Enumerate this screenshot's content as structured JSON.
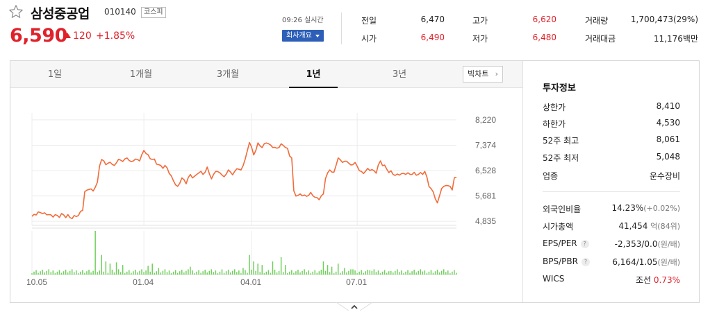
{
  "stock": {
    "name": "삼성중공업",
    "code": "010140",
    "market": "코스피",
    "price": "6,590",
    "change": "120",
    "change_pct": "+1.85%",
    "realtime": "09:26 실시간",
    "overview_btn": "회사개요"
  },
  "stats": {
    "prev_close_label": "전일",
    "prev_close": "6,470",
    "high_label": "고가",
    "high": "6,620",
    "volume_label": "거래량",
    "volume": "1,700,473(29%)",
    "open_label": "시가",
    "open": "6,490",
    "low_label": "저가",
    "low": "6,480",
    "amount_label": "거래대금",
    "amount": "11,176백만"
  },
  "tabs": [
    {
      "label": "1일"
    },
    {
      "label": "1개월"
    },
    {
      "label": "3개월"
    },
    {
      "label": "1년"
    },
    {
      "label": "3년"
    }
  ],
  "active_tab": "1년",
  "bigchart_label": "빅차트",
  "info": {
    "title": "투자정보",
    "rows1": [
      {
        "label": "상한가",
        "value": "8,410",
        "color": "#e0212a"
      },
      {
        "label": "하한가",
        "value": "4,530",
        "color": "#2b59c3"
      },
      {
        "label": "52주 최고",
        "value": "8,061",
        "color": "#222222"
      },
      {
        "label": "52주 최저",
        "value": "5,048",
        "color": "#222222"
      },
      {
        "label": "업종",
        "value": "운수장비",
        "color": "#222222"
      }
    ],
    "foreign_label": "외국인비율",
    "foreign_value": "14.23%",
    "foreign_sub": "(+0.02%)",
    "mcap_label": "시가총액",
    "mcap_value": "41,454",
    "mcap_unit": "억(84위)",
    "eps_label": "EPS/PER",
    "eps_value": "-2,353/0.0",
    "eps_unit": "(원/배)",
    "bps_label": "BPS/PBR",
    "bps_value": "6,164/1.05",
    "bps_unit": "(원/배)",
    "wics_label": "WICS",
    "wics_value": "조선",
    "wics_pct": "0.73%",
    "help_glyph": "?"
  },
  "colors": {
    "up": "#e0212a",
    "down": "#2b59c3",
    "line": "#f26b3a",
    "volume": "#6fcf5a"
  },
  "chart_data": {
    "type": "line",
    "ylim": [
      4700,
      8450
    ],
    "yticks": [
      "8,220",
      "7,374",
      "6,528",
      "5,681",
      "4,835"
    ],
    "ytick_values": [
      8220,
      7374,
      6528,
      5681,
      4835
    ],
    "xticks": [
      "10.05",
      "01.04",
      "04.01",
      "07.01"
    ],
    "xtick_positions": [
      0,
      53,
      104,
      154
    ],
    "n_points": 202,
    "price_anchors": [
      [
        0,
        5000
      ],
      [
        3,
        5150
      ],
      [
        6,
        5120
      ],
      [
        9,
        5050
      ],
      [
        12,
        5030
      ],
      [
        15,
        5050
      ],
      [
        18,
        4960
      ],
      [
        20,
        4960
      ],
      [
        22,
        5030
      ],
      [
        24,
        5200
      ],
      [
        25,
        5800
      ],
      [
        27,
        5900
      ],
      [
        29,
        5850
      ],
      [
        31,
        6100
      ],
      [
        32,
        6700
      ],
      [
        33,
        6900
      ],
      [
        35,
        6750
      ],
      [
        37,
        6800
      ],
      [
        39,
        6700
      ],
      [
        41,
        6900
      ],
      [
        43,
        6850
      ],
      [
        45,
        6950
      ],
      [
        47,
        6800
      ],
      [
        49,
        6900
      ],
      [
        51,
        6850
      ],
      [
        53,
        7200
      ],
      [
        55,
        7000
      ],
      [
        57,
        6900
      ],
      [
        59,
        6800
      ],
      [
        61,
        6650
      ],
      [
        63,
        6700
      ],
      [
        65,
        6500
      ],
      [
        67,
        6200
      ],
      [
        69,
        6000
      ],
      [
        71,
        6300
      ],
      [
        73,
        6150
      ],
      [
        75,
        6400
      ],
      [
        77,
        6300
      ],
      [
        79,
        6500
      ],
      [
        81,
        6400
      ],
      [
        83,
        6600
      ],
      [
        85,
        6250
      ],
      [
        87,
        6500
      ],
      [
        89,
        6450
      ],
      [
        91,
        6300
      ],
      [
        93,
        6550
      ],
      [
        95,
        6400
      ],
      [
        97,
        6600
      ],
      [
        99,
        6550
      ],
      [
        101,
        6900
      ],
      [
        103,
        7500
      ],
      [
        105,
        7050
      ],
      [
        107,
        7400
      ],
      [
        109,
        7300
      ],
      [
        111,
        7450
      ],
      [
        113,
        7350
      ],
      [
        115,
        7250
      ],
      [
        117,
        7300
      ],
      [
        119,
        7400
      ],
      [
        121,
        7200
      ],
      [
        123,
        6950
      ],
      [
        124,
        5800
      ],
      [
        126,
        5700
      ],
      [
        128,
        5750
      ],
      [
        130,
        5680
      ],
      [
        132,
        5800
      ],
      [
        134,
        5650
      ],
      [
        136,
        5600
      ],
      [
        138,
        5750
      ],
      [
        139,
        6300
      ],
      [
        141,
        6550
      ],
      [
        143,
        6450
      ],
      [
        145,
        6950
      ],
      [
        147,
        6800
      ],
      [
        149,
        6850
      ],
      [
        151,
        6700
      ],
      [
        153,
        6800
      ],
      [
        155,
        6550
      ],
      [
        157,
        6450
      ],
      [
        159,
        6600
      ],
      [
        161,
        6550
      ],
      [
        163,
        6500
      ],
      [
        165,
        6850
      ],
      [
        167,
        6650
      ],
      [
        169,
        6500
      ],
      [
        171,
        6400
      ],
      [
        173,
        6350
      ],
      [
        175,
        6400
      ],
      [
        178,
        6400
      ],
      [
        181,
        6400
      ],
      [
        184,
        6400
      ],
      [
        186,
        6500
      ],
      [
        188,
        6050
      ],
      [
        190,
        5800
      ],
      [
        192,
        5450
      ],
      [
        194,
        5950
      ],
      [
        196,
        6050
      ],
      [
        198,
        6000
      ],
      [
        199,
        5900
      ],
      [
        200,
        6280
      ],
      [
        201,
        6300
      ]
    ],
    "volume_spikes": [
      [
        30,
        1.0
      ],
      [
        33,
        0.45
      ],
      [
        35,
        0.3
      ],
      [
        37,
        0.25
      ],
      [
        40,
        0.28
      ],
      [
        43,
        0.22
      ],
      [
        55,
        0.2
      ],
      [
        57,
        0.25
      ],
      [
        60,
        0.15
      ],
      [
        75,
        0.18
      ],
      [
        90,
        0.12
      ],
      [
        100,
        0.15
      ],
      [
        103,
        0.45
      ],
      [
        105,
        0.3
      ],
      [
        107,
        0.25
      ],
      [
        109,
        0.22
      ],
      [
        114,
        0.3
      ],
      [
        118,
        0.4
      ],
      [
        120,
        0.22
      ],
      [
        138,
        0.3
      ],
      [
        140,
        0.22
      ],
      [
        142,
        0.18
      ],
      [
        145,
        0.25
      ],
      [
        148,
        0.15
      ],
      [
        152,
        0.12
      ],
      [
        160,
        0.1
      ],
      [
        170,
        0.08
      ],
      [
        185,
        0.07
      ]
    ]
  }
}
